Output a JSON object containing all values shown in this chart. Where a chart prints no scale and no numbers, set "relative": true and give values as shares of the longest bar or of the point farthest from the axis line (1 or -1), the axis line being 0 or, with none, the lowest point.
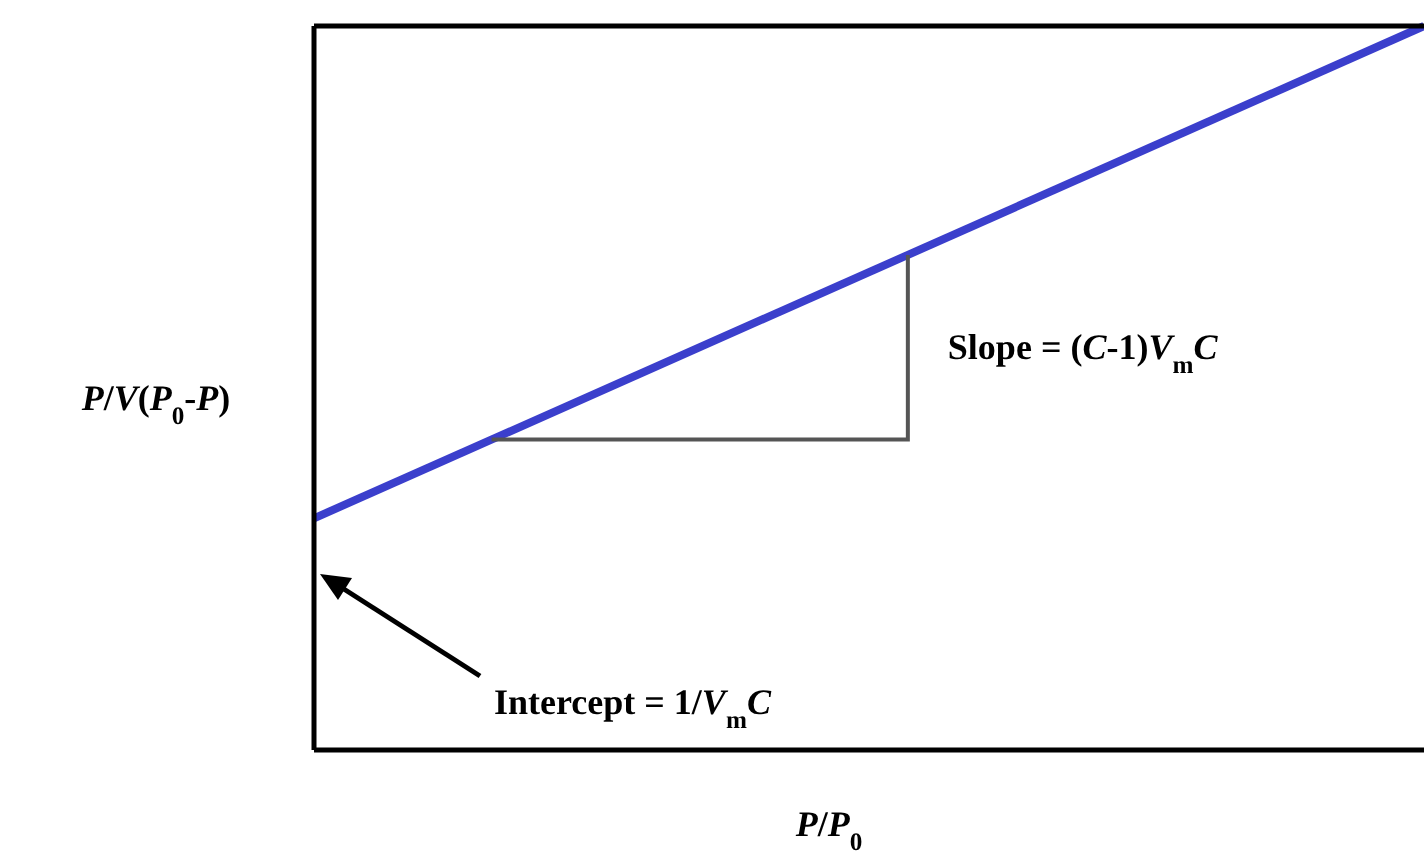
{
  "chart_data": {
    "type": "line",
    "relative": true,
    "categories": [
      null,
      null
    ],
    "series": [
      {
        "color": "#3b3fcc",
        "values": [
          0.32,
          1
        ]
      }
    ],
    "xlabel": "P/P$_{0}$",
    "ylabel": "P/V(P$_{0}$-P)",
    "annotations": [
      "Slope = (C-1)V$_{m}$C",
      "Intercept = 1/V$_{m}$C"
    ],
    "line_style": "solid"
  }
}
